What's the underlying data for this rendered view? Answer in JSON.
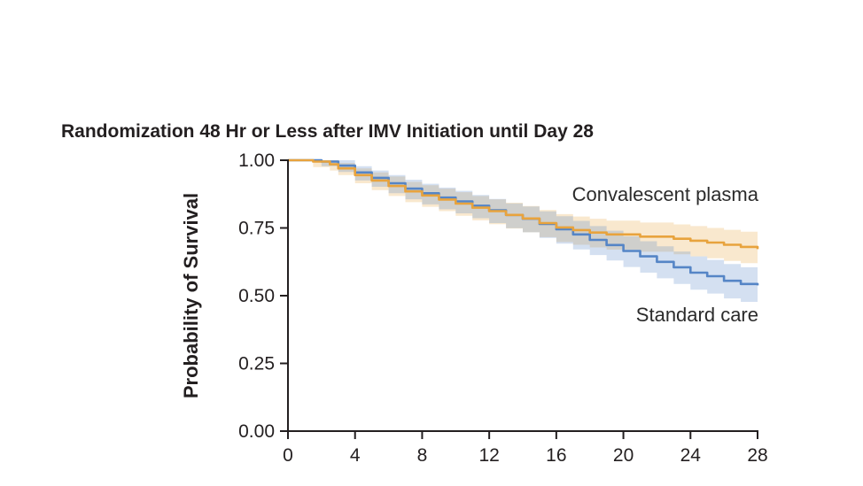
{
  "page": {
    "background": "#ffffff"
  },
  "chart_data": {
    "type": "line",
    "subtype": "kaplan-meier-step-with-confidence-bands",
    "title": "Randomization 48 Hr or Less after IMV Initiation until Day 28",
    "xlabel": "",
    "ylabel": "Probability of Survival",
    "xlim": [
      0,
      28
    ],
    "ylim": [
      0,
      1
    ],
    "xticks": [
      0,
      4,
      8,
      12,
      16,
      20,
      24,
      28
    ],
    "yticks": [
      {
        "v": 0.0,
        "label": "0.00"
      },
      {
        "v": 0.25,
        "label": "0.25"
      },
      {
        "v": 0.5,
        "label": "0.50"
      },
      {
        "v": 0.75,
        "label": "0.75"
      },
      {
        "v": 1.0,
        "label": "1.00"
      }
    ],
    "grid": false,
    "legend_position": "inline-annotations",
    "axis_color": "#231f20",
    "series": [
      {
        "name": "Convalescent plasma",
        "color": "#E8A33D",
        "band_color": "rgba(232,163,61,0.25)",
        "points_format": [
          "day",
          "survival",
          "ci_lower",
          "ci_upper"
        ],
        "points": [
          [
            0,
            1.0,
            1.0,
            1.0
          ],
          [
            1.5,
            0.995,
            0.975,
            1.0
          ],
          [
            2.5,
            0.985,
            0.962,
            1.0
          ],
          [
            3,
            0.97,
            0.945,
            0.99
          ],
          [
            4,
            0.945,
            0.915,
            0.97
          ],
          [
            5,
            0.925,
            0.89,
            0.955
          ],
          [
            6,
            0.905,
            0.868,
            0.94
          ],
          [
            7,
            0.885,
            0.845,
            0.92
          ],
          [
            8,
            0.87,
            0.828,
            0.908
          ],
          [
            9,
            0.855,
            0.812,
            0.895
          ],
          [
            10,
            0.84,
            0.795,
            0.882
          ],
          [
            11,
            0.825,
            0.778,
            0.868
          ],
          [
            12,
            0.812,
            0.764,
            0.856
          ],
          [
            13,
            0.798,
            0.748,
            0.843
          ],
          [
            14,
            0.785,
            0.734,
            0.831
          ],
          [
            15,
            0.768,
            0.716,
            0.816
          ],
          [
            16,
            0.752,
            0.698,
            0.801
          ],
          [
            17,
            0.742,
            0.688,
            0.792
          ],
          [
            18,
            0.733,
            0.678,
            0.784
          ],
          [
            19,
            0.726,
            0.67,
            0.777
          ],
          [
            21,
            0.718,
            0.662,
            0.77
          ],
          [
            23,
            0.71,
            0.653,
            0.763
          ],
          [
            24,
            0.703,
            0.645,
            0.757
          ],
          [
            25,
            0.696,
            0.638,
            0.75
          ],
          [
            26,
            0.688,
            0.628,
            0.743
          ],
          [
            27,
            0.68,
            0.62,
            0.736
          ],
          [
            28,
            0.672,
            0.61,
            0.729
          ]
        ]
      },
      {
        "name": "Standard care",
        "color": "#5585C6",
        "band_color": "rgba(85,133,198,0.25)",
        "points_format": [
          "day",
          "survival",
          "ci_lower",
          "ci_upper"
        ],
        "points": [
          [
            0,
            1.0,
            1.0,
            1.0
          ],
          [
            2,
            0.995,
            0.978,
            1.0
          ],
          [
            3,
            0.98,
            0.957,
            1.0
          ],
          [
            4,
            0.955,
            0.925,
            0.978
          ],
          [
            5,
            0.935,
            0.902,
            0.962
          ],
          [
            6,
            0.915,
            0.878,
            0.945
          ],
          [
            7,
            0.895,
            0.856,
            0.928
          ],
          [
            8,
            0.878,
            0.837,
            0.913
          ],
          [
            9,
            0.862,
            0.819,
            0.899
          ],
          [
            10,
            0.848,
            0.804,
            0.887
          ],
          [
            11,
            0.832,
            0.786,
            0.872
          ],
          [
            12,
            0.815,
            0.768,
            0.857
          ],
          [
            13,
            0.798,
            0.749,
            0.841
          ],
          [
            14,
            0.784,
            0.734,
            0.829
          ],
          [
            15,
            0.765,
            0.713,
            0.811
          ],
          [
            16,
            0.745,
            0.692,
            0.793
          ],
          [
            17,
            0.726,
            0.671,
            0.776
          ],
          [
            18,
            0.706,
            0.65,
            0.757
          ],
          [
            19,
            0.687,
            0.63,
            0.74
          ],
          [
            20,
            0.665,
            0.606,
            0.719
          ],
          [
            21,
            0.645,
            0.585,
            0.701
          ],
          [
            22,
            0.625,
            0.564,
            0.682
          ],
          [
            23,
            0.605,
            0.543,
            0.663
          ],
          [
            24,
            0.585,
            0.522,
            0.645
          ],
          [
            25,
            0.572,
            0.508,
            0.632
          ],
          [
            26,
            0.555,
            0.49,
            0.617
          ],
          [
            27,
            0.543,
            0.477,
            0.605
          ],
          [
            28,
            0.538,
            0.47,
            0.6
          ]
        ]
      }
    ]
  }
}
